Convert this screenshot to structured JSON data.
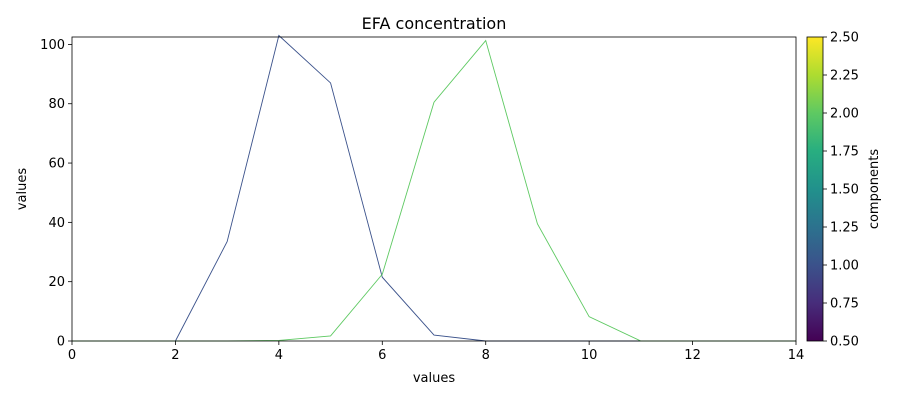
{
  "chart_data": {
    "type": "line",
    "title": "EFA concentration",
    "xlabel": "values",
    "ylabel": "values",
    "xlim": [
      0,
      14
    ],
    "ylim": [
      0,
      102.5
    ],
    "x_ticks": [
      "0",
      "2",
      "4",
      "6",
      "8",
      "10",
      "12",
      "14"
    ],
    "y_ticks": [
      "0",
      "20",
      "40",
      "60",
      "80",
      "100"
    ],
    "grid": false,
    "x": [
      0,
      1,
      2,
      3,
      4,
      5,
      6,
      7,
      8,
      9,
      10,
      11,
      12,
      13,
      14
    ],
    "series": [
      {
        "color": "#3b528b",
        "values": [
          0,
          0,
          0,
          33.5,
          103,
          87,
          21.5,
          2,
          0,
          0,
          0,
          0,
          0,
          0,
          0
        ]
      },
      {
        "color": "#5ec962",
        "values": [
          0,
          0,
          0,
          0,
          0.2,
          1.7,
          22.5,
          80.5,
          101.3,
          39.5,
          8.2,
          0,
          0,
          0,
          0
        ]
      }
    ],
    "colorbar": {
      "label": "components",
      "range": [
        0.5,
        2.5
      ],
      "ticks": [
        "0.50",
        "0.75",
        "1.00",
        "1.25",
        "1.50",
        "1.75",
        "2.00",
        "2.25",
        "2.50"
      ],
      "colormap": "viridis"
    }
  }
}
